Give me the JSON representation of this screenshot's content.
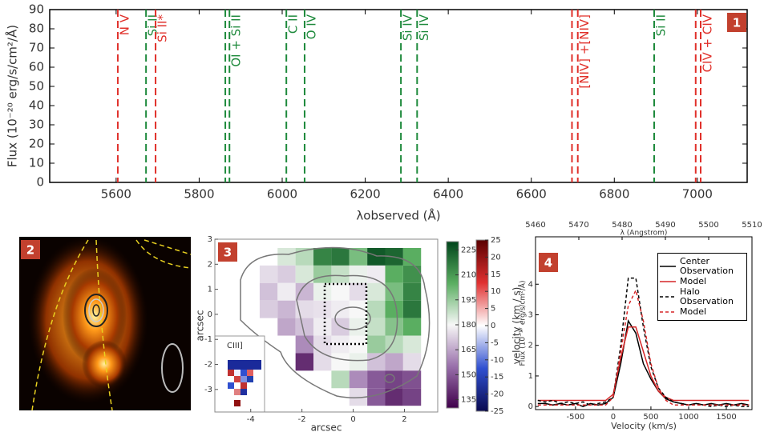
{
  "chart_data": [
    {
      "type": "vlines",
      "badge": "1",
      "xlabel": "λobserved (Å)",
      "ylabel": "Flux (10⁻²⁰ erg/s/cm²/Å)",
      "xlim": [
        5440,
        7120
      ],
      "ylim": [
        0,
        90
      ],
      "xticks": [
        5600,
        5800,
        6000,
        6200,
        6400,
        6600,
        6800,
        7000
      ],
      "yticks": [
        0,
        10,
        20,
        30,
        40,
        50,
        60,
        70,
        80,
        90
      ],
      "lines": [
        {
          "label": "N V",
          "color": "#e0302a",
          "x": [
            5604
          ]
        },
        {
          "label": "Si II",
          "color": "#1e8a3c",
          "x": [
            5672
          ]
        },
        {
          "label": "Si II*",
          "color": "#e0302a",
          "x": [
            5695
          ]
        },
        {
          "label": "OI + Si II",
          "color": "#1e8a3c",
          "x": [
            5863,
            5873
          ]
        },
        {
          "label": "C II",
          "color": "#1e8a3c",
          "x": [
            6010
          ]
        },
        {
          "label": "O IV",
          "color": "#1e8a3c",
          "x": [
            6054
          ]
        },
        {
          "label": "Si IV",
          "color": "#1e8a3c",
          "x": [
            6286
          ]
        },
        {
          "label": "Si IV",
          "color": "#1e8a3c",
          "x": [
            6325
          ]
        },
        {
          "label": "[NIV] +[NIV]",
          "color": "#e0302a",
          "x": [
            6698,
            6712
          ]
        },
        {
          "label": "Si II",
          "color": "#1e8a3c",
          "x": [
            6896
          ]
        },
        {
          "label": "CIV + CIV",
          "color": "#e0302a",
          "x": [
            6996,
            7008
          ]
        }
      ]
    },
    {
      "type": "image",
      "badge": "2"
    },
    {
      "type": "heatmap",
      "badge": "3",
      "xlabel": "arcsec",
      "ylabel": "arcsec",
      "xlim": [
        -5.4,
        3.3
      ],
      "ylim": [
        -3.9,
        3.0
      ],
      "xticks": [
        -4,
        -2,
        0,
        2
      ],
      "yticks": [
        -3,
        -2,
        -1,
        0,
        1,
        2,
        3
      ],
      "x": [
        -4.0,
        -3.3,
        -2.6,
        -1.9,
        -1.2,
        -0.5,
        0.2,
        0.9,
        1.6,
        2.3,
        3.0
      ],
      "y": [
        2.3,
        1.6,
        0.9,
        0.2,
        -0.5,
        -1.2,
        -1.9,
        -2.6,
        -3.3
      ],
      "z": [
        [
          null,
          null,
          185,
          190,
          215,
          218,
          200,
          225,
          222,
          205,
          null
        ],
        [
          null,
          175,
          172,
          185,
          195,
          188,
          182,
          178,
          205,
          212,
          null
        ],
        [
          null,
          170,
          178,
          168,
          182,
          180,
          175,
          185,
          200,
          215,
          null
        ],
        [
          null,
          172,
          168,
          175,
          176,
          178,
          180,
          190,
          205,
          218,
          null
        ],
        [
          null,
          null,
          165,
          170,
          178,
          172,
          182,
          188,
          198,
          205,
          null
        ],
        [
          null,
          null,
          null,
          160,
          175,
          178,
          180,
          195,
          190,
          185,
          null
        ],
        [
          null,
          null,
          null,
          140,
          175,
          180,
          182,
          170,
          165,
          175,
          null
        ],
        [
          null,
          null,
          null,
          null,
          null,
          190,
          160,
          150,
          145,
          148,
          null
        ],
        [
          null,
          null,
          null,
          null,
          null,
          null,
          175,
          150,
          140,
          145,
          null
        ]
      ],
      "clim": [
        130,
        230
      ],
      "cticks": [
        135,
        150,
        165,
        180,
        195,
        210,
        225
      ],
      "colorbar2": {
        "label": "velocity (km / s)",
        "clim": [
          -25,
          25
        ],
        "ticks": [
          -25,
          -20,
          -15,
          -10,
          -5,
          0,
          5,
          10,
          15,
          20,
          25
        ]
      },
      "inset_label": "CIII]"
    },
    {
      "type": "line",
      "badge": "4",
      "xlabel": "Velocity (km/s)",
      "ylabel": "Flux (10⁻¹⁷ erg/s/cm²/Å)",
      "x2label": "λ (Angstrom)",
      "xlim": [
        -1030,
        1840
      ],
      "ylim": [
        -0.1,
        5.55
      ],
      "x2lim": [
        5460,
        5510
      ],
      "xticks": [
        -500,
        0,
        500,
        1000,
        1500
      ],
      "yticks": [
        0,
        1,
        2,
        3,
        4
      ],
      "x2ticks": [
        5460,
        5470,
        5480,
        5490,
        5500,
        5510
      ],
      "x": [
        -1000,
        -900,
        -800,
        -700,
        -600,
        -500,
        -400,
        -300,
        -200,
        -100,
        0,
        100,
        200,
        300,
        400,
        500,
        600,
        700,
        800,
        900,
        1000,
        1100,
        1200,
        1300,
        1400,
        1500,
        1600,
        1700,
        1800
      ],
      "series": [
        {
          "name": "Center Observation",
          "color": "#000000",
          "dash": false,
          "values": [
            0.1,
            0.1,
            0.05,
            0.1,
            0.05,
            0.1,
            0.0,
            0.1,
            0.05,
            0.1,
            0.3,
            1.4,
            2.8,
            2.4,
            1.4,
            0.9,
            0.5,
            0.25,
            0.15,
            0.1,
            0.05,
            0.1,
            0.05,
            0.1,
            0.05,
            0.1,
            0.05,
            0.1,
            0.05
          ]
        },
        {
          "name": "Model",
          "color": "#d62728",
          "dash": false,
          "values": [
            0.2,
            0.2,
            0.2,
            0.2,
            0.2,
            0.2,
            0.2,
            0.2,
            0.2,
            0.2,
            0.4,
            1.6,
            2.6,
            2.6,
            1.8,
            1.0,
            0.5,
            0.3,
            0.2,
            0.2,
            0.2,
            0.2,
            0.2,
            0.2,
            0.2,
            0.2,
            0.2,
            0.2,
            0.2
          ]
        },
        {
          "name": "Halo Observation",
          "color": "#000000",
          "dash": true,
          "values": [
            0.2,
            0.15,
            0.2,
            0.1,
            0.15,
            0.1,
            0.15,
            0.05,
            0.1,
            0.15,
            0.3,
            2.0,
            4.2,
            4.2,
            2.6,
            1.3,
            0.6,
            0.3,
            0.15,
            0.1,
            0.05,
            0.1,
            0.05,
            0.0,
            0.05,
            0.0,
            0.05,
            0.0,
            0.0
          ]
        },
        {
          "name": "Model",
          "color": "#d62728",
          "dash": true,
          "values": [
            0.05,
            0.05,
            0.05,
            0.05,
            0.05,
            0.05,
            0.05,
            0.05,
            0.05,
            0.05,
            0.3,
            1.8,
            3.3,
            3.8,
            2.8,
            1.4,
            0.6,
            0.2,
            0.05,
            0.05,
            0.05,
            0.05,
            0.05,
            0.05,
            0.05,
            0.05,
            0.05,
            0.05,
            0.05
          ]
        }
      ]
    }
  ]
}
